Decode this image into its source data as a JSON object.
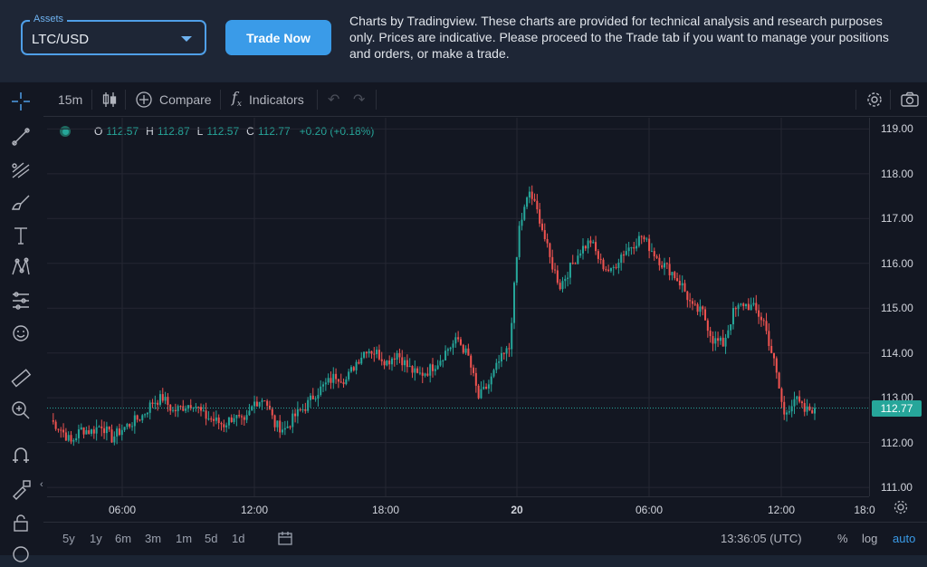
{
  "header": {
    "assets_label": "Assets",
    "asset_value": "LTC/USD",
    "trade_button": "Trade Now",
    "disclaimer": "Charts by Tradingview. These charts are provided for technical analysis and research purposes only. Prices are indicative. Please proceed to the Trade tab if you want to manage your positions and orders, or make a trade."
  },
  "toolbar": {
    "interval": "15m",
    "compare": "Compare",
    "indicators": "Indicators"
  },
  "legend": {
    "o_label": "O",
    "o_value": "112.57",
    "h_label": "H",
    "h_value": "112.87",
    "l_label": "L",
    "l_value": "112.57",
    "c_label": "C",
    "c_value": "112.77",
    "change": "+0.20 (+0.18%)"
  },
  "colors": {
    "up": "#26a69a",
    "down": "#ef5350",
    "accent": "#3a9be8"
  },
  "bottom": {
    "ranges": [
      "5y",
      "1y",
      "6m",
      "3m",
      "1m",
      "5d",
      "1d"
    ],
    "time": "13:36:05 (UTC)",
    "percent": "%",
    "log": "log",
    "auto": "auto"
  },
  "chart_data": {
    "type": "candlestick",
    "symbol": "LTC/USD",
    "interval": "15m",
    "y_ticks": [
      "119.00",
      "118.00",
      "117.00",
      "116.00",
      "115.00",
      "114.00",
      "113.00",
      "112.00",
      "111.00"
    ],
    "ylim": [
      110.8,
      119.25
    ],
    "x_ticks": [
      "06:00",
      "12:00",
      "18:00",
      "20",
      "06:00",
      "12:00",
      "18:0"
    ],
    "last_price": "112.77",
    "last_value": 112.77,
    "close_path": [
      112.5,
      112.3,
      112.0,
      112.3,
      112.25,
      112.4,
      112.1,
      112.3,
      112.45,
      112.6,
      112.9,
      113.0,
      112.7,
      112.8,
      112.9,
      112.6,
      112.5,
      112.4,
      112.6,
      112.4,
      112.9,
      113.0,
      112.4,
      112.3,
      112.6,
      112.8,
      113.1,
      113.3,
      113.5,
      113.4,
      113.8,
      114.1,
      114.0,
      113.8,
      114.0,
      113.7,
      113.5,
      113.6,
      113.8,
      114.1,
      114.3,
      113.9,
      113.0,
      113.3,
      113.8,
      114.1,
      116.8,
      117.6,
      117.0,
      116.1,
      115.5,
      115.9,
      116.3,
      116.5,
      116.0,
      115.8,
      116.2,
      116.4,
      116.6,
      116.3,
      116.0,
      115.8,
      115.5,
      115.0,
      114.9,
      114.3,
      114.2,
      114.9,
      115.1,
      115.0,
      114.7,
      113.8,
      112.6,
      113.0,
      112.7,
      112.77
    ]
  }
}
